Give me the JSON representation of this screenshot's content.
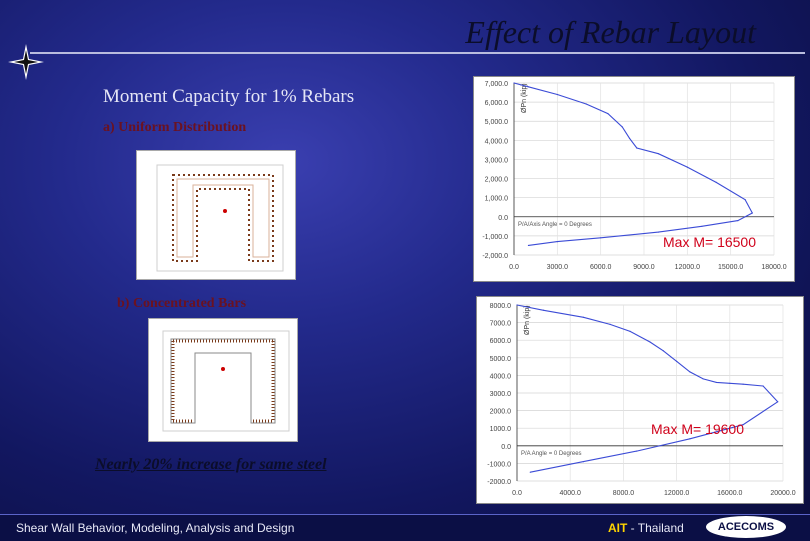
{
  "slide": {
    "title": "Effect of Rebar Layout",
    "subtitle": "Moment Capacity for 1% Rebars",
    "section_a_label": "a) Uniform Distribution",
    "section_b_label": "b) Concentrated Bars",
    "max_label_a": "Max M= 16500",
    "max_label_b": "Max M= 19600",
    "conclusion": "Nearly 20% increase for same steel"
  },
  "footer": {
    "left_text": "Shear Wall Behavior, Modeling, Analysis and Design",
    "ait_text": "AIT",
    "thailand_text": " - Thailand",
    "logo_text": "ACECOMS"
  },
  "colors": {
    "accent_red": "#d0021b",
    "curve_blue": "#3b4bd6"
  },
  "chart_data": [
    {
      "type": "line",
      "title": "",
      "ylabel": "ØPn (kip)",
      "y_tick_labels": [
        "7,000.0",
        "6,000.0",
        "5,000.0",
        "4,000.0",
        "3,000.0",
        "2,000.0",
        "1,000.0",
        "0.0",
        "-1,000.0",
        "-2,000.0"
      ],
      "x_tick_labels": [
        "0.0",
        "3000.0",
        "6000.0",
        "9000.0",
        "12000.0",
        "15000.0",
        "18000.0"
      ],
      "annotation": "P/A/Axis Angle = 0 Degrees",
      "series": [
        {
          "x": [
            0,
            1000,
            3000,
            5000,
            6500,
            7500,
            8000,
            8500,
            10000,
            12000,
            14000,
            16000,
            16500,
            15500,
            13000,
            10000,
            6000,
            3000,
            1000
          ],
          "y": [
            7000,
            6800,
            6400,
            5900,
            5400,
            4700,
            4100,
            3600,
            3300,
            2600,
            1800,
            900,
            200,
            -200,
            -500,
            -800,
            -1100,
            -1300,
            -1500
          ]
        }
      ]
    },
    {
      "type": "line",
      "title": "",
      "ylabel": "ØPn (kip)",
      "y_tick_labels": [
        "8000.0",
        "7000.0",
        "6000.0",
        "5000.0",
        "4000.0",
        "3000.0",
        "2000.0",
        "1000.0",
        "0.0",
        "-1000.0",
        "-2000.0"
      ],
      "x_tick_labels": [
        "0.0",
        "4000.0",
        "8000.0",
        "12000.0",
        "16000.0",
        "20000.0"
      ],
      "annotation": "P/A Angle = 0 Degrees",
      "series": [
        {
          "x": [
            0,
            2000,
            5000,
            7000,
            8500,
            10000,
            11000,
            12000,
            13000,
            14000,
            15000,
            16000,
            17000,
            18500,
            19600,
            17000,
            13000,
            9000,
            5000,
            1000
          ],
          "y": [
            8000,
            7700,
            7300,
            6900,
            6500,
            5900,
            5400,
            4800,
            4200,
            3800,
            3600,
            3550,
            3500,
            3400,
            2500,
            1200,
            400,
            -300,
            -900,
            -1500
          ]
        }
      ]
    }
  ]
}
